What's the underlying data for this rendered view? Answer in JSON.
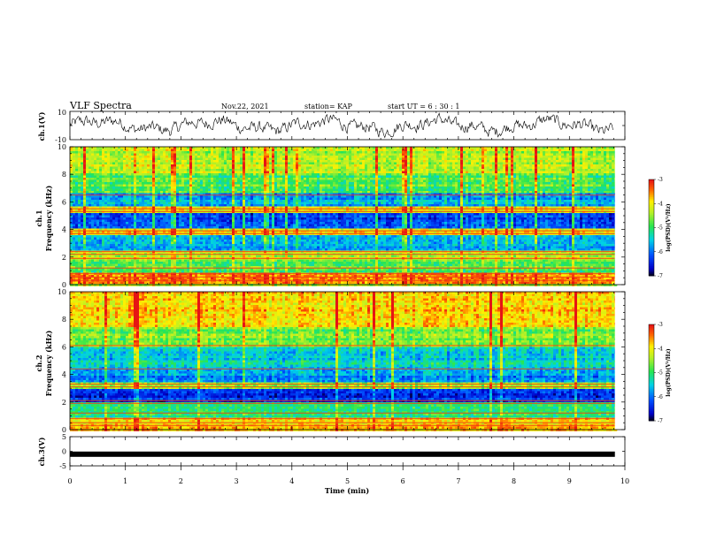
{
  "header": {
    "title": "VLF Spectra",
    "date": "Nov.22, 2021",
    "station": "station= KAP",
    "start": "start  UT =  6 : 30 : 1"
  },
  "chart_data": [
    {
      "type": "line",
      "id": "ch1-waveform",
      "ylabel": "ch.1(V)",
      "ylim": [
        -10,
        10
      ],
      "yticks": [
        "10",
        "-10"
      ],
      "xlim": [
        0,
        10
      ],
      "description_series": "noisy waveform oscillating mostly between about -4 and +6 V over 0-9.8 min"
    },
    {
      "type": "heatmap",
      "id": "ch1-spectrogram",
      "ylabel": "ch.1\nFrequency (kHz)",
      "ylim": [
        0,
        10
      ],
      "yticks": [
        "0",
        "2",
        "4",
        "6",
        "8",
        "10"
      ],
      "xlim": [
        0,
        10
      ],
      "colorbar": {
        "label": "log(PSD)(V²/Hz)",
        "range": [
          -7,
          -3
        ],
        "ticks": [
          "-3",
          "-4",
          "-5",
          "-6",
          "-7"
        ]
      },
      "bands": [
        {
          "f0": 0.0,
          "f1": 0.8,
          "level": -3.6
        },
        {
          "f0": 0.8,
          "f1": 1.8,
          "level": -4.8
        },
        {
          "f0": 1.8,
          "f1": 2.4,
          "level": -4.2
        },
        {
          "f0": 2.4,
          "f1": 3.6,
          "level": -5.6
        },
        {
          "f0": 3.6,
          "f1": 4.0,
          "level": -4.0
        },
        {
          "f0": 4.0,
          "f1": 5.2,
          "level": -6.2
        },
        {
          "f0": 5.2,
          "f1": 5.6,
          "level": -4.0
        },
        {
          "f0": 5.6,
          "f1": 6.6,
          "level": -5.7
        },
        {
          "f0": 6.6,
          "f1": 8.0,
          "level": -4.8
        },
        {
          "f0": 8.0,
          "f1": 10.0,
          "level": -4.3
        }
      ]
    },
    {
      "type": "heatmap",
      "id": "ch2-spectrogram",
      "ylabel": "ch.2\nFrequency (kHz)",
      "ylim": [
        0,
        10
      ],
      "yticks": [
        "0",
        "2",
        "4",
        "6",
        "8",
        "10"
      ],
      "xlim": [
        0,
        10
      ],
      "colorbar": {
        "label": "log(PSD)(V²/Hz)",
        "range": [
          -7,
          -3
        ],
        "ticks": [
          "-3",
          "-4",
          "-5",
          "-6",
          "-7"
        ]
      },
      "bands": [
        {
          "f0": 0.0,
          "f1": 0.8,
          "level": -3.8
        },
        {
          "f0": 0.8,
          "f1": 2.0,
          "level": -5.0
        },
        {
          "f0": 2.0,
          "f1": 3.0,
          "level": -6.3
        },
        {
          "f0": 3.0,
          "f1": 3.4,
          "level": -4.4
        },
        {
          "f0": 3.4,
          "f1": 4.4,
          "level": -5.8
        },
        {
          "f0": 4.4,
          "f1": 6.0,
          "level": -5.4
        },
        {
          "f0": 6.0,
          "f1": 7.5,
          "level": -4.6
        },
        {
          "f0": 7.5,
          "f1": 10.0,
          "level": -3.8
        }
      ]
    },
    {
      "type": "line",
      "id": "ch3-signal",
      "ylabel": "ch.3(V)",
      "ylim": [
        -5,
        5
      ],
      "yticks": [
        "5",
        "0",
        "-5"
      ],
      "xlim": [
        0,
        10
      ],
      "xlabel": "Time  (min)",
      "xticks": [
        "0",
        "1",
        "2",
        "3",
        "4",
        "5",
        "6",
        "7",
        "8",
        "9",
        "10"
      ],
      "constant_value": -1.0
    }
  ]
}
